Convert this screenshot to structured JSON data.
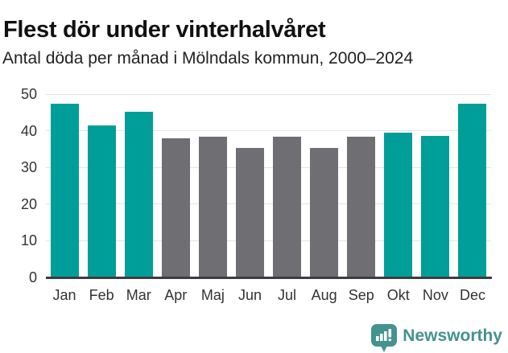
{
  "header": {
    "title": "Flest dör under vinterhalvåret",
    "subtitle": "Antal döda per månad i Mölndals kommun, 2000–2024"
  },
  "chart_data": {
    "type": "bar",
    "title": "Flest dör under vinterhalvåret",
    "subtitle": "Antal döda per månad i Mölndals kommun, 2000–2024",
    "categories": [
      "Jan",
      "Feb",
      "Mar",
      "Apr",
      "Maj",
      "Jun",
      "Jul",
      "Aug",
      "Sep",
      "Okt",
      "Nov",
      "Dec"
    ],
    "values": [
      47.3,
      41.4,
      45.1,
      37.9,
      38.4,
      35.3,
      38.3,
      35.3,
      38.4,
      39.4,
      38.7,
      47.3
    ],
    "highlighted_categories": [
      "Jan",
      "Feb",
      "Mar",
      "Okt",
      "Nov",
      "Dec"
    ],
    "colors": {
      "highlight": "#009e99",
      "default": "#6f6f73"
    },
    "xlabel": "",
    "ylabel": "",
    "ylim": [
      0,
      50
    ],
    "yticks": [
      0,
      10,
      20,
      30,
      40,
      50
    ],
    "grid": "horizontal",
    "legend": "none"
  },
  "footer": {
    "brand": "Newsworthy",
    "brand_color": "#43938e"
  }
}
